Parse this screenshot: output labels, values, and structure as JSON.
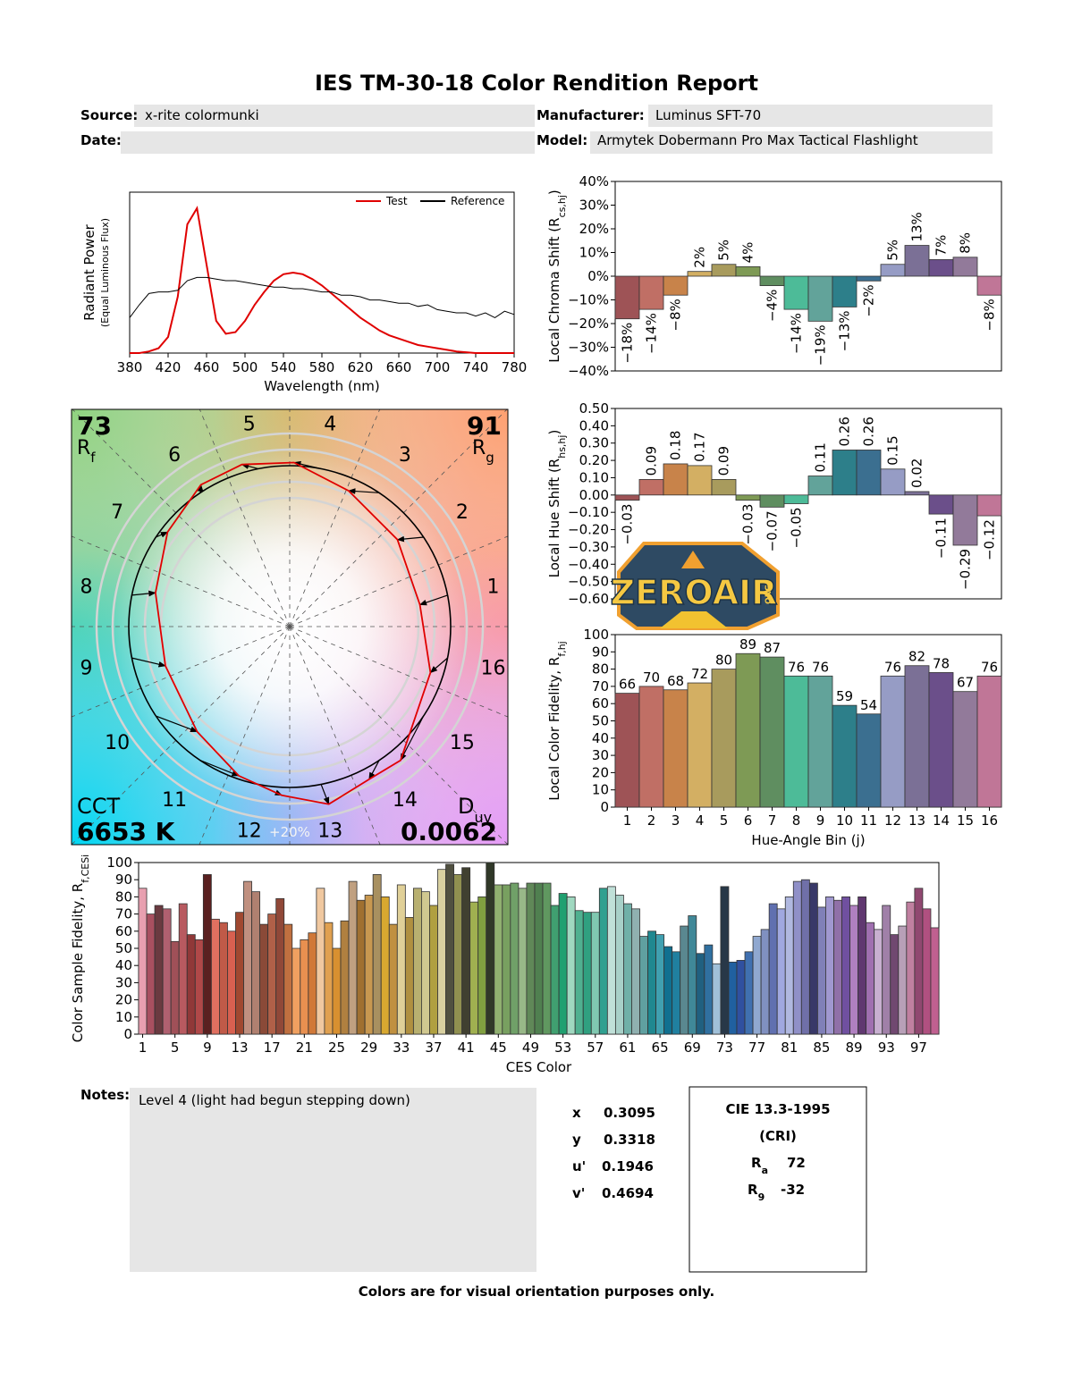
{
  "header": {
    "title": "IES TM-30-18 Color Rendition Report",
    "fields": [
      {
        "label": "Source:",
        "value": "x-rite colormunki"
      },
      {
        "label": "Manufacturer:",
        "value": "Luminus SFT-70"
      },
      {
        "label": "Date:"
      },
      {
        "label": "Model:",
        "value": "Armytek Dobermann Pro Max Tactical Flashlight"
      }
    ]
  },
  "chart_data": [
    {
      "type": "line",
      "ylabel": [
        "Radiant Power",
        "(Equal Luminous Flux)"
      ],
      "xlabel": "Wavelength (nm)",
      "x": [
        380,
        390,
        400,
        410,
        420,
        430,
        440,
        450,
        460,
        470,
        480,
        490,
        500,
        510,
        520,
        530,
        540,
        550,
        560,
        570,
        580,
        590,
        600,
        610,
        620,
        630,
        640,
        650,
        660,
        670,
        680,
        690,
        700,
        710,
        720,
        730,
        740,
        750,
        760,
        770,
        780
      ],
      "series": [
        {
          "name": "Test",
          "color": "#e00000",
          "values": [
            0,
            0,
            0.01,
            0.03,
            0.1,
            0.35,
            0.8,
            0.9,
            0.55,
            0.2,
            0.12,
            0.13,
            0.2,
            0.3,
            0.38,
            0.45,
            0.49,
            0.5,
            0.49,
            0.46,
            0.42,
            0.37,
            0.32,
            0.27,
            0.22,
            0.18,
            0.14,
            0.11,
            0.09,
            0.07,
            0.05,
            0.04,
            0.03,
            0.02,
            0.01,
            0.005,
            0,
            0,
            0,
            0,
            0
          ]
        },
        {
          "name": "Reference",
          "color": "#000000",
          "values": [
            0.22,
            0.3,
            0.37,
            0.38,
            0.38,
            0.39,
            0.45,
            0.47,
            0.47,
            0.46,
            0.45,
            0.45,
            0.44,
            0.43,
            0.42,
            0.41,
            0.41,
            0.4,
            0.4,
            0.39,
            0.38,
            0.38,
            0.36,
            0.36,
            0.35,
            0.33,
            0.33,
            0.32,
            0.31,
            0.31,
            0.29,
            0.3,
            0.27,
            0.26,
            0.25,
            0.25,
            0.23,
            0.25,
            0.22,
            0.26,
            0.24
          ]
        }
      ],
      "xlim": [
        380,
        780
      ],
      "xticks": [
        380,
        420,
        460,
        500,
        540,
        580,
        620,
        660,
        700,
        740,
        780
      ],
      "ylim": [
        0,
        1
      ]
    },
    {
      "type": "bar",
      "ylabel": [
        "Local Chroma Shift (R",
        "cs,hj",
        ")"
      ],
      "values": [
        -18,
        -14,
        -8,
        2,
        5,
        4,
        -4,
        -14,
        -19,
        -13,
        -2,
        5,
        13,
        7,
        8,
        -8
      ],
      "value_labels": [
        "−18%",
        "−14%",
        "−8%",
        "2%",
        "5%",
        "4%",
        "−4%",
        "−14%",
        "−19%",
        "−13%",
        "−2%",
        "5%",
        "13%",
        "7%",
        "8%",
        "−8%"
      ],
      "label_rotation": 90,
      "colors": [
        "#9e5356",
        "#c06f65",
        "#c8834a",
        "#d3af63",
        "#a89b5d",
        "#7e9a55",
        "#5f8e60",
        "#4dbb98",
        "#62a39a",
        "#2d7f8a",
        "#3b6f90",
        "#969cc5",
        "#7b7096",
        "#6b4f8a",
        "#927a9a",
        "#c07697"
      ],
      "ylim": [
        -40,
        40
      ],
      "yticks": [
        {
          "value": -40,
          "label": "−40%"
        },
        {
          "value": -30,
          "label": "−30%"
        },
        {
          "value": -20,
          "label": "−20%"
        },
        {
          "value": -10,
          "label": "−10%"
        },
        {
          "value": 0,
          "label": "0%"
        },
        {
          "value": 10,
          "label": "10%"
        },
        {
          "value": 20,
          "label": "20%"
        },
        {
          "value": 30,
          "label": "30%"
        },
        {
          "value": 40,
          "label": "40%"
        }
      ]
    },
    {
      "type": "bar",
      "ylabel": [
        "Local Hue Shift (R",
        "hs,hj",
        ")"
      ],
      "values": [
        -0.03,
        0.09,
        0.18,
        0.17,
        0.09,
        -0.03,
        -0.07,
        -0.05,
        0.11,
        0.26,
        0.26,
        0.15,
        0.02,
        -0.11,
        -0.29,
        -0.12
      ],
      "value_labels": [
        "−0.03",
        "0.09",
        "0.18",
        "0.17",
        "0.09",
        "−0.03",
        "−0.07",
        "−0.05",
        "0.11",
        "0.26",
        "0.26",
        "0.15",
        "0.02",
        "−0.11",
        "−0.29",
        "−0.12"
      ],
      "label_rotation": 90,
      "colors": [
        "#9e5356",
        "#c06f65",
        "#c8834a",
        "#d3af63",
        "#a89b5d",
        "#7e9a55",
        "#5f8e60",
        "#4dbb98",
        "#62a39a",
        "#2d7f8a",
        "#3b6f90",
        "#969cc5",
        "#7b7096",
        "#6b4f8a",
        "#927a9a",
        "#c07697"
      ],
      "ylim": [
        -0.6,
        0.5
      ],
      "yticks": [
        {
          "value": -0.6,
          "label": "−0.60"
        },
        {
          "value": -0.5,
          "label": "−0.50"
        },
        {
          "value": -0.4,
          "label": "−0.40"
        },
        {
          "value": -0.3,
          "label": "−0.30"
        },
        {
          "value": -0.2,
          "label": "−0.20"
        },
        {
          "value": -0.1,
          "label": "−0.10"
        },
        {
          "value": 0,
          "label": "0.00"
        },
        {
          "value": 0.1,
          "label": "0.10"
        },
        {
          "value": 0.2,
          "label": "0.20"
        },
        {
          "value": 0.3,
          "label": "0.30"
        },
        {
          "value": 0.4,
          "label": "0.40"
        },
        {
          "value": 0.5,
          "label": "0.50"
        }
      ]
    },
    {
      "type": "bar",
      "ylabel": [
        "Local Color Fidelity, R",
        "f,hj"
      ],
      "xlabel": "Hue-Angle Bin (j)",
      "categories": [
        "1",
        "2",
        "3",
        "4",
        "5",
        "6",
        "7",
        "8",
        "9",
        "10",
        "11",
        "12",
        "13",
        "14",
        "15",
        "16"
      ],
      "values": [
        66,
        70,
        68,
        72,
        80,
        89,
        87,
        76,
        76,
        59,
        54,
        76,
        82,
        78,
        67,
        76
      ],
      "data_labels": true,
      "colors": [
        "#9e5356",
        "#c06f65",
        "#c8834a",
        "#d3af63",
        "#a89b5d",
        "#7e9a55",
        "#5f8e60",
        "#4dbb98",
        "#62a39a",
        "#2d7f8a",
        "#3b6f90",
        "#969cc5",
        "#7b7096",
        "#6b4f8a",
        "#927a9a",
        "#c07697"
      ],
      "ylim": [
        0,
        100
      ],
      "yticks": [
        0,
        10,
        20,
        30,
        40,
        50,
        60,
        70,
        80,
        90,
        100
      ]
    },
    {
      "type": "vector",
      "rf": 73,
      "rf_label": [
        "R",
        "f"
      ],
      "rg": 91,
      "rg_label": [
        "R",
        "g"
      ],
      "cct_label": "CCT",
      "cct": {
        "value": 6653,
        "label": "6653 K"
      },
      "duv_label": [
        "D",
        "uv"
      ],
      "duv": 0.0062,
      "ring_label": "+20%"
    },
    {
      "type": "bar",
      "ylabel": [
        "Color Sample Fidelity, R",
        "f,CESi"
      ],
      "xlabel": "CES Color",
      "categories": [
        "1",
        null,
        null,
        null,
        "5",
        null,
        null,
        null,
        "9",
        null,
        null,
        null,
        "13",
        null,
        null,
        null,
        "17",
        null,
        null,
        null,
        "21",
        null,
        null,
        null,
        "25",
        null,
        null,
        null,
        "29",
        null,
        null,
        null,
        "33",
        null,
        null,
        null,
        "37",
        null,
        null,
        null,
        "41",
        null,
        null,
        null,
        "45",
        null,
        null,
        null,
        "49",
        null,
        null,
        null,
        "53",
        null,
        null,
        null,
        "57",
        null,
        null,
        null,
        "61",
        null,
        null,
        null,
        "65",
        null,
        null,
        null,
        "69",
        null,
        null,
        null,
        "73",
        null,
        null,
        null,
        "77",
        null,
        null,
        null,
        "81",
        null,
        null,
        null,
        "85",
        null,
        null,
        null,
        "89",
        null,
        null,
        null,
        "93",
        null,
        null,
        null,
        "97",
        null,
        null
      ],
      "values": [
        85,
        70,
        75,
        73,
        54,
        76,
        58,
        55,
        93,
        67,
        65,
        60,
        71,
        89,
        83,
        64,
        70,
        79,
        64,
        50,
        55,
        59,
        85,
        65,
        50,
        66,
        89,
        78,
        81,
        93,
        80,
        64,
        87,
        68,
        85,
        83,
        75,
        96,
        99,
        93,
        97,
        77,
        80,
        100,
        87,
        87,
        88,
        85,
        88,
        88,
        88,
        75,
        82,
        80,
        72,
        71,
        71,
        85,
        86,
        81,
        76,
        73,
        57,
        60,
        58,
        51,
        48,
        63,
        69,
        47,
        52,
        41,
        86,
        42,
        43,
        48,
        57,
        61,
        76,
        73,
        80,
        89,
        90,
        88,
        74,
        80,
        78,
        80,
        75,
        80,
        65,
        61,
        75,
        58,
        63,
        77,
        85,
        73,
        62
      ],
      "colors": [
        "#e8a0b0",
        "#a85060",
        "#6a3a40",
        "#b06070",
        "#a05058",
        "#b85a60",
        "#903838",
        "#b04848",
        "#5a2020",
        "#e07060",
        "#c05a48",
        "#d86050",
        "#a04830",
        "#c09080",
        "#b08070",
        "#8a4a38",
        "#b06048",
        "#904838",
        "#c07040",
        "#f0a060",
        "#e89050",
        "#d07838",
        "#f0c8a0",
        "#e0a050",
        "#d89030",
        "#b08040",
        "#c0a080",
        "#a07030",
        "#c89850",
        "#a89060",
        "#d8a830",
        "#c09040",
        "#e0d098",
        "#b09040",
        "#b8b070",
        "#d0c890",
        "#b0a040",
        "#d8d0a0",
        "#505040",
        "#909050",
        "#404030",
        "#a0b050",
        "#80a040",
        "#303828",
        "#90b070",
        "#78a060",
        "#70a068",
        "#98b888",
        "#608858",
        "#508050",
        "#609860",
        "#40a070",
        "#20a070",
        "#a0d8c0",
        "#50b090",
        "#30a080",
        "#80c8b0",
        "#30a090",
        "#c0e0d8",
        "#a8d0c8",
        "#70b0a8",
        "#90b0b0",
        "#60a0a0",
        "#208890",
        "#40a0b0",
        "#107090",
        "#2080a0",
        "#5a8890",
        "#408898",
        "#206080",
        "#3070a0",
        "#a0c0d8",
        "#283848",
        "#2060a0",
        "#3050a0",
        "#4070b0",
        "#90a8d0",
        "#8090c0",
        "#6070b0",
        "#a0a8e0",
        "#b0b8e0",
        "#9090c8",
        "#7070a8",
        "#383868",
        "#8080b8",
        "#a098d0",
        "#9070a8",
        "#7050a0",
        "#b080c0",
        "#603870",
        "#a070b0",
        "#c8b0d0",
        "#a080a8",
        "#704870",
        "#b8a0b8",
        "#c080a0",
        "#904870",
        "#b05080",
        "#c06090"
      ],
      "ylim": [
        0,
        100
      ],
      "yticks": [
        0,
        10,
        20,
        30,
        40,
        50,
        60,
        70,
        80,
        90,
        100
      ]
    }
  ],
  "logo": {
    "text": "ZEROAIR",
    "sub": "ORG"
  },
  "notes": {
    "label": "Notes:",
    "text": "Level 4 (light had begun stepping down)"
  },
  "chromaticity": [
    {
      "label": "x",
      "value": 0.3095
    },
    {
      "label": "y",
      "value": 0.3318
    },
    {
      "label": "u'",
      "value": 0.1946
    },
    {
      "label": "v'",
      "value": 0.4694
    }
  ],
  "cri": {
    "title": "CIE 13.3-1995",
    "subtitle": "(CRI)",
    "items": [
      {
        "label": [
          "R",
          "a"
        ],
        "value": 72
      },
      {
        "label": [
          "R",
          "9"
        ],
        "value": -32
      }
    ]
  },
  "footer": "Colors are for visual orientation purposes only."
}
